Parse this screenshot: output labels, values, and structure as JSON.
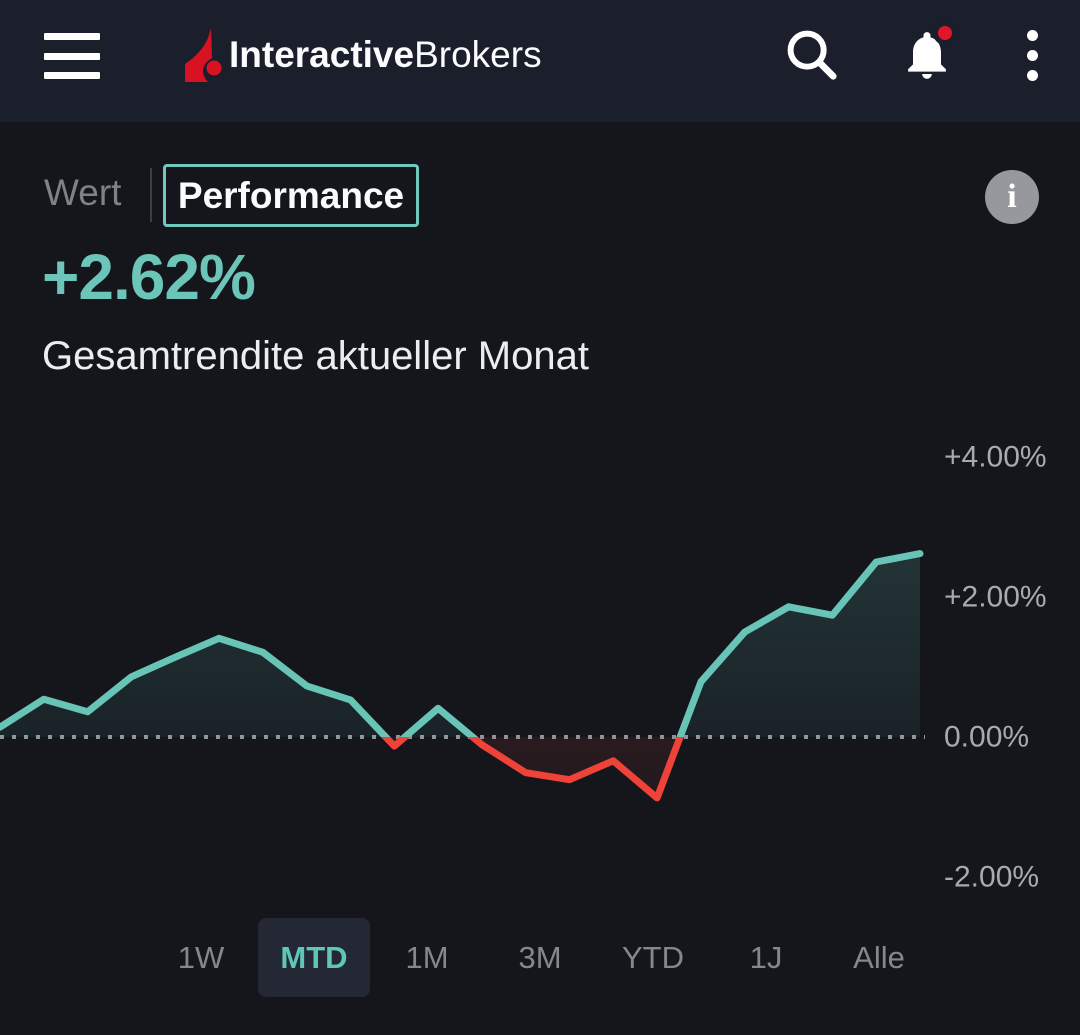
{
  "topbar": {
    "brand_bold": "Interactive",
    "brand_regular": "Brokers"
  },
  "view_toggle": {
    "options": [
      {
        "label": "Wert",
        "selected": false
      },
      {
        "label": "Performance",
        "selected": true
      }
    ]
  },
  "info_button": {
    "label": "i"
  },
  "headline": {
    "value": "+2.62%",
    "subtitle": "Gesamtrendite aktueller Monat"
  },
  "colors": {
    "positive": "#68C4B6",
    "negative": "#EF4238",
    "accent_border": "#6FC9BD",
    "axis_label": "#A6AAB1",
    "zero_line": "#8F949C",
    "topbar_bg": "#1A1F2B",
    "page_bg": "#14161C",
    "notification_dot": "#E0162B"
  },
  "chart_data": {
    "type": "area",
    "title": "Performance MTD",
    "unit": "%",
    "x": [
      0,
      1,
      2,
      3,
      4,
      5,
      6,
      7,
      8,
      9,
      10,
      11,
      12,
      13,
      14,
      15,
      16,
      17,
      18,
      19,
      20,
      21
    ],
    "values": [
      0.14,
      0.54,
      0.36,
      0.86,
      1.14,
      1.41,
      1.21,
      0.73,
      0.53,
      -0.13,
      0.41,
      -0.11,
      -0.51,
      -0.61,
      -0.34,
      -0.87,
      0.79,
      1.5,
      1.86,
      1.74,
      2.5,
      2.62
    ],
    "ylim": [
      -2.47,
      4.39
    ],
    "yticks": [
      {
        "label": "+4.00%",
        "value": 4
      },
      {
        "label": "+2.00%",
        "value": 2
      },
      {
        "label": "0.00%",
        "value": 0
      },
      {
        "label": "-2.00%",
        "value": -2
      }
    ],
    "zero_line": "dotted",
    "grid": false,
    "legend": "none",
    "line_color_above_zero": "#68C4B6",
    "line_color_below_zero": "#EF4238"
  },
  "periods": {
    "options": [
      "1W",
      "MTD",
      "1M",
      "3M",
      "YTD",
      "1J",
      "Alle"
    ],
    "selected": "MTD"
  }
}
